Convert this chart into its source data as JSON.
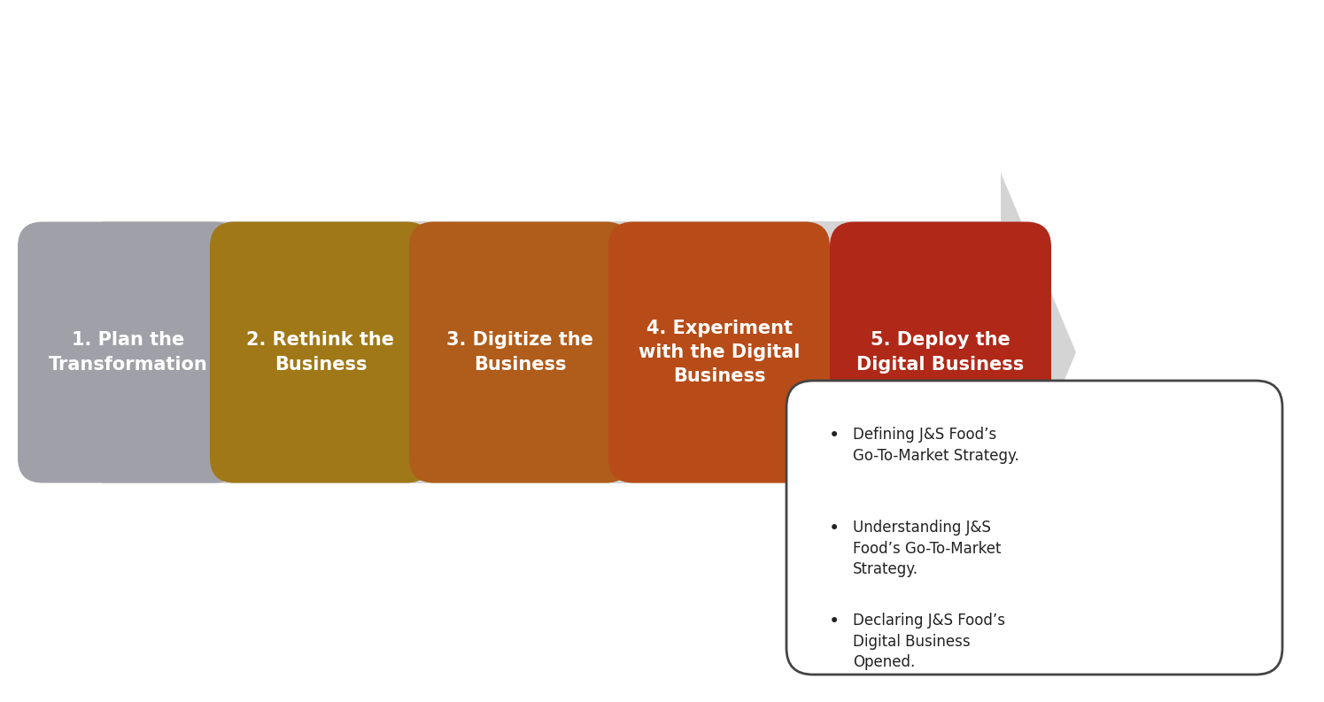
{
  "background_color": "#ffffff",
  "arrow_color": "#d4d4d4",
  "steps": [
    {
      "label": "1. Plan the\nTransformation",
      "color": "#a0a0a8",
      "active": false
    },
    {
      "label": "2. Rethink the\nBusiness",
      "color": "#a07818",
      "active": false
    },
    {
      "label": "3. Digitize the\nBusiness",
      "color": "#b05c1a",
      "active": false
    },
    {
      "label": "4. Experiment\nwith the Digital\nBusiness",
      "color": "#b84c18",
      "active": false
    },
    {
      "label": "5. Deploy the\nDigital Business",
      "color": "#b02818",
      "active": true
    }
  ],
  "bullet_points": [
    "Defining J&S Food’s\nGo-To-Market Strategy.",
    "Understanding J&S\nFood’s Go-To-Market\nStrategy.",
    "Declaring J&S Food’s\nDigital Business\nOpened."
  ],
  "box_border_color": "#444444",
  "box_bg_color": "#ffffff",
  "text_color_white": "#ffffff",
  "text_color_dark": "#222222",
  "font_size_step": 15,
  "font_size_bullet": 12
}
